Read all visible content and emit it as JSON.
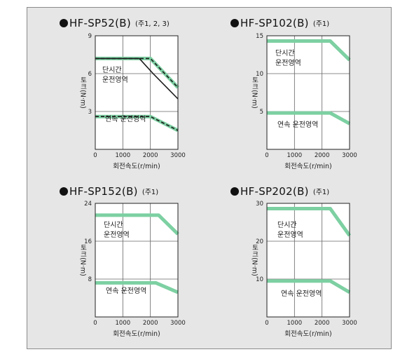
{
  "charts": [
    {
      "title": "HF-SP52(B)",
      "note": "(주1, 2, 3)",
      "ylabel": "토크(N·m)",
      "xlabel": "회전속도(r/min)",
      "region1": [
        "단시간",
        "운전영역"
      ],
      "region2": "연속 운전영역"
    },
    {
      "title": "HF-SP102(B)",
      "note": "(주1)",
      "ylabel": "토크(N·m)",
      "xlabel": "회전속도(r/min)",
      "region1": [
        "단시간",
        "운전영역"
      ],
      "region2": "연속 운전영역"
    },
    {
      "title": "HF-SP152(B)",
      "note": "(주1)",
      "ylabel": "토크(N·m)",
      "xlabel": "회전속도(r/min)",
      "region1": [
        "단시간",
        "운전영역"
      ],
      "region2": "연속 운전영역"
    },
    {
      "title": "HF-SP202(B)",
      "note": "(주1)",
      "ylabel": "토크(N·m)",
      "xlabel": "회전속도(r/min)",
      "region1": [
        "단시간",
        "운전영역"
      ],
      "region2": "연속 운전영역"
    }
  ],
  "chart_data": [
    {
      "type": "line",
      "title": "HF-SP52(B)",
      "xlabel": "회전속도(r/min)",
      "ylabel": "토크(N·m)",
      "xlim": [
        0,
        3000
      ],
      "ylim": [
        0,
        9
      ],
      "xticks": [
        0,
        1000,
        2000,
        3000
      ],
      "yticks": [
        3,
        6,
        9
      ],
      "series": [
        {
          "style": "dashed-green",
          "x": [
            0,
            2000,
            3000
          ],
          "y": [
            7.2,
            7.2,
            4.9
          ]
        },
        {
          "style": "solid-black",
          "x": [
            0,
            1600,
            2100,
            3000
          ],
          "y": [
            7.2,
            7.2,
            6.0,
            4.0
          ]
        },
        {
          "style": "dashed-green",
          "x": [
            0,
            2000,
            3000
          ],
          "y": [
            2.6,
            2.6,
            1.5
          ]
        }
      ]
    },
    {
      "type": "line",
      "title": "HF-SP102(B)",
      "xlabel": "회전속도(r/min)",
      "ylabel": "토크(N·m)",
      "xlim": [
        0,
        3000
      ],
      "ylim": [
        0,
        15
      ],
      "xticks": [
        0,
        1000,
        2000,
        3000
      ],
      "yticks": [
        5,
        10,
        15
      ],
      "series": [
        {
          "style": "thick-green",
          "x": [
            0,
            2300,
            3000
          ],
          "y": [
            14.3,
            14.3,
            11.8
          ]
        },
        {
          "style": "thick-green",
          "x": [
            0,
            2300,
            3000
          ],
          "y": [
            4.8,
            4.8,
            3.4
          ]
        }
      ]
    },
    {
      "type": "line",
      "title": "HF-SP152(B)",
      "xlabel": "회전속도(r/min)",
      "ylabel": "토크(N·m)",
      "xlim": [
        0,
        3000
      ],
      "ylim": [
        0,
        24
      ],
      "xticks": [
        0,
        1000,
        2000,
        3000
      ],
      "yticks": [
        8,
        16,
        24
      ],
      "series": [
        {
          "style": "thick-green",
          "x": [
            0,
            2300,
            3000
          ],
          "y": [
            21.5,
            21.5,
            17.5
          ]
        },
        {
          "style": "thick-green",
          "x": [
            0,
            2200,
            3000
          ],
          "y": [
            7.2,
            7.2,
            5.2
          ]
        }
      ]
    },
    {
      "type": "line",
      "title": "HF-SP202(B)",
      "xlabel": "회전속도(r/min)",
      "ylabel": "토크(N·m)",
      "xlim": [
        0,
        3000
      ],
      "ylim": [
        0,
        30
      ],
      "xticks": [
        0,
        1000,
        2000,
        3000
      ],
      "yticks": [
        10,
        20,
        30
      ],
      "series": [
        {
          "style": "thick-green",
          "x": [
            0,
            2300,
            3000
          ],
          "y": [
            28.6,
            28.6,
            21.5
          ]
        },
        {
          "style": "thick-green",
          "x": [
            0,
            2300,
            3000
          ],
          "y": [
            9.5,
            9.5,
            6.5
          ]
        }
      ]
    }
  ],
  "colors": {
    "green": "#7dd0a2",
    "dark": "#1a1a1a",
    "axis": "#222222",
    "grid": "#666666",
    "panel_bg": "#ffffff",
    "frame_bg": "#e6e6e6"
  }
}
